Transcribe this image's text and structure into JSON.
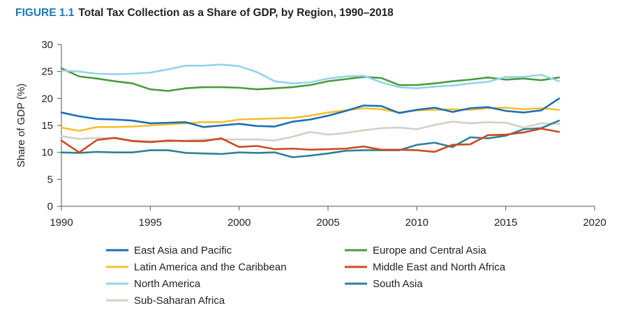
{
  "figure": {
    "label": "FIGURE 1.1",
    "title": "Total Tax Collection as a Share of GDP, by Region, 1990–2018"
  },
  "chart_data": {
    "type": "line",
    "title": "Total Tax Collection as a Share of GDP, by Region, 1990–2018",
    "xlabel": "",
    "ylabel": "Share of GDP (%)",
    "xlim": [
      1990,
      2020
    ],
    "ylim": [
      0,
      30
    ],
    "xticks": [
      1990,
      1995,
      2000,
      2005,
      2010,
      2015,
      2020
    ],
    "yticks": [
      0,
      5,
      10,
      15,
      20,
      25,
      30
    ],
    "grid": false,
    "legend_position": "bottom",
    "x": [
      1990,
      1991,
      1992,
      1993,
      1994,
      1995,
      1996,
      1997,
      1998,
      1999,
      2000,
      2001,
      2002,
      2003,
      2004,
      2005,
      2006,
      2007,
      2008,
      2009,
      2010,
      2011,
      2012,
      2013,
      2014,
      2015,
      2016,
      2017,
      2018
    ],
    "series": [
      {
        "name": "East Asia and Pacific",
        "color": "#1b6fb5",
        "values": [
          17.4,
          16.7,
          16.2,
          16.1,
          15.9,
          15.4,
          15.5,
          15.6,
          14.7,
          15.0,
          15.3,
          14.9,
          14.8,
          15.7,
          16.1,
          16.8,
          17.7,
          18.7,
          18.6,
          17.3,
          17.9,
          18.3,
          17.5,
          18.2,
          18.4,
          17.7,
          17.4,
          17.8,
          20.0
        ]
      },
      {
        "name": "Europe and Central Asia",
        "color": "#4a9a3d",
        "values": [
          25.6,
          24.1,
          23.7,
          23.2,
          22.8,
          21.7,
          21.4,
          21.9,
          22.1,
          22.1,
          22.0,
          21.7,
          21.9,
          22.1,
          22.5,
          23.2,
          23.6,
          24.0,
          23.8,
          22.5,
          22.5,
          22.8,
          23.2,
          23.5,
          23.9,
          23.5,
          23.7,
          23.4,
          23.9
        ]
      },
      {
        "name": "Latin America and the Caribbean",
        "color": "#f6bf2b",
        "values": [
          14.6,
          14.0,
          14.7,
          14.7,
          14.8,
          15.0,
          15.2,
          15.4,
          15.6,
          15.6,
          16.1,
          16.2,
          16.3,
          16.4,
          16.8,
          17.4,
          17.8,
          18.2,
          18.0,
          17.4,
          17.8,
          17.9,
          18.0,
          17.9,
          18.2,
          18.3,
          18.0,
          18.2,
          17.9
        ]
      },
      {
        "name": "Middle East and North Africa",
        "color": "#cc4a22",
        "values": [
          12.2,
          10.0,
          12.3,
          12.7,
          12.1,
          11.9,
          12.2,
          12.1,
          12.1,
          12.6,
          11.0,
          11.2,
          10.6,
          10.7,
          10.5,
          10.6,
          10.7,
          11.1,
          10.5,
          10.5,
          10.4,
          10.1,
          11.4,
          11.5,
          13.2,
          13.3,
          13.7,
          14.4,
          13.8
        ]
      },
      {
        "name": "North America",
        "color": "#92d3ec",
        "values": [
          25.2,
          25.0,
          24.6,
          24.5,
          24.6,
          24.8,
          25.4,
          26.1,
          26.1,
          26.3,
          26.0,
          24.9,
          23.2,
          22.8,
          23.0,
          23.7,
          24.1,
          24.2,
          23.0,
          22.1,
          21.9,
          22.2,
          22.4,
          22.8,
          23.1,
          24.0,
          24.0,
          24.4,
          23.2
        ]
      },
      {
        "name": "South Asia",
        "color": "#2e8195",
        "values": [
          10.0,
          9.9,
          10.1,
          10.0,
          10.0,
          10.4,
          10.4,
          9.9,
          9.8,
          9.7,
          10.0,
          9.9,
          10.0,
          9.1,
          9.4,
          9.8,
          10.3,
          10.4,
          10.4,
          10.4,
          11.4,
          11.8,
          11.0,
          12.8,
          12.6,
          13.1,
          14.3,
          14.5,
          15.9
        ]
      },
      {
        "name": "Sub-Saharan Africa",
        "color": "#cfd2c4",
        "values": [
          13.0,
          12.5,
          12.7,
          12.6,
          12.2,
          12.1,
          12.0,
          12.2,
          12.4,
          12.4,
          12.4,
          12.4,
          12.2,
          12.9,
          13.8,
          13.3,
          13.6,
          14.1,
          14.5,
          14.6,
          14.3,
          15.1,
          15.7,
          15.4,
          15.6,
          15.5,
          14.6,
          15.4,
          15.3
        ]
      }
    ]
  }
}
